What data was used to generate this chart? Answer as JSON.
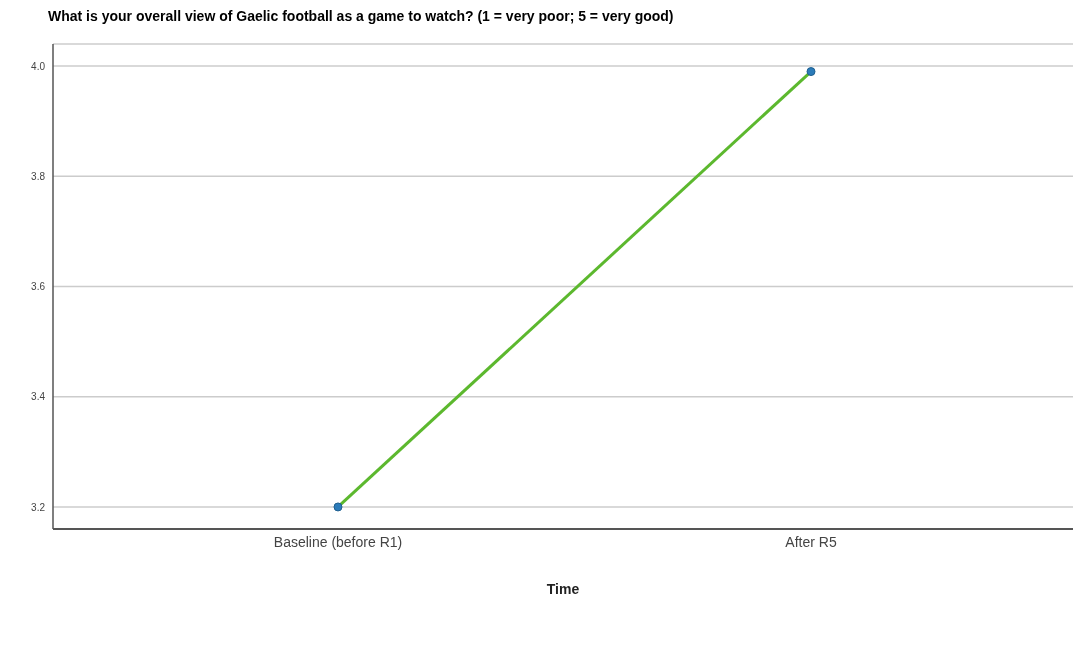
{
  "chart_data": {
    "type": "line",
    "title": "What is your overall view of Gaelic football as a game to watch? (1 = very poor; 5 = very good)",
    "xlabel": "Time",
    "categories": [
      "Baseline (before R1)",
      "After R5"
    ],
    "series": [
      {
        "color": "#5cb82e",
        "values": [
          3.2,
          3.99
        ]
      }
    ],
    "ylim": [
      3.16,
      4.04
    ],
    "yticks": [
      3.2,
      3.4,
      3.6,
      3.8,
      {
        "value": 4,
        "label": "4.0"
      }
    ],
    "grid": "y",
    "marker": "circle",
    "line_style": "solid",
    "legend": false
  }
}
